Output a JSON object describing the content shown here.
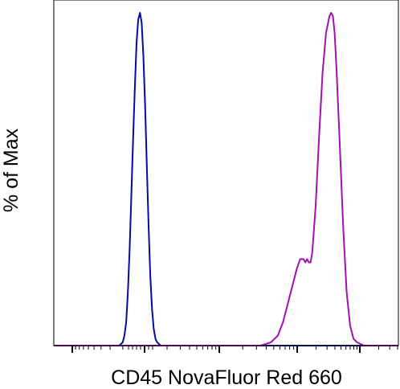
{
  "chart_data": {
    "type": "line",
    "title": "",
    "xlabel": "CD45 NovaFluor Red 660",
    "ylabel": "% of Max",
    "x_scale": "logicle",
    "xlim": [
      0,
      1
    ],
    "ylim": [
      0,
      100
    ],
    "grid": false,
    "legend": "none",
    "x_tick_labels": [],
    "y_tick_labels": [],
    "series": [
      {
        "color": "#0a0a9c",
        "x": [
          0.17,
          0.19,
          0.2,
          0.205,
          0.21,
          0.215,
          0.22,
          0.225,
          0.23,
          0.235,
          0.24,
          0.245,
          0.25,
          0.255,
          0.26,
          0.265,
          0.27,
          0.275,
          0.28,
          0.285,
          0.29,
          0.295,
          0.3,
          0.31,
          0.33,
          1.0
        ],
        "y": [
          0,
          0,
          1,
          3,
          7,
          16,
          29,
          45,
          62,
          77,
          91,
          98,
          100,
          97,
          87,
          72,
          54,
          36,
          21,
          11,
          5,
          2,
          1,
          0,
          0,
          0
        ]
      },
      {
        "color": "#a010b4",
        "x": [
          0.0,
          0.6,
          0.63,
          0.65,
          0.665,
          0.675,
          0.685,
          0.695,
          0.705,
          0.715,
          0.725,
          0.73,
          0.735,
          0.74,
          0.745,
          0.75,
          0.76,
          0.77,
          0.78,
          0.79,
          0.8,
          0.805,
          0.81,
          0.815,
          0.82,
          0.83,
          0.84,
          0.85,
          0.86,
          0.87,
          0.88,
          0.9,
          0.95,
          1.0
        ],
        "y": [
          0,
          0,
          1,
          3,
          7,
          11,
          15,
          19,
          23,
          26,
          26,
          25,
          26,
          25,
          25,
          28,
          42,
          63,
          82,
          94,
          99,
          100,
          99,
          94,
          84,
          60,
          35,
          16,
          6,
          2,
          1,
          0,
          0,
          0
        ]
      }
    ]
  }
}
